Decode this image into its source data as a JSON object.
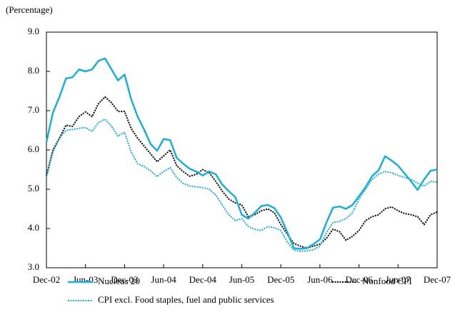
{
  "chart_data": {
    "type": "line",
    "y_axis_label": "(Percentage)",
    "categories": [
      "Dec-02",
      null,
      null,
      null,
      null,
      null,
      "Jun-03",
      null,
      null,
      null,
      null,
      null,
      "Dec-03",
      null,
      null,
      null,
      null,
      null,
      "Jun-04",
      null,
      null,
      null,
      null,
      null,
      "Dec-04",
      null,
      null,
      null,
      null,
      null,
      "Jun-05",
      null,
      null,
      null,
      null,
      null,
      "Dec-05",
      null,
      null,
      null,
      null,
      null,
      "Jun-06",
      null,
      null,
      null,
      null,
      null,
      "Dec-06",
      null,
      null,
      null,
      null,
      null,
      "Jun-07",
      null,
      null,
      null,
      null,
      null,
      "Dec-07"
    ],
    "ylim": [
      3,
      9
    ],
    "yticks": [
      {
        "value": 3,
        "label": "3.0"
      },
      {
        "value": 4,
        "label": "4.0"
      },
      {
        "value": 5,
        "label": "5.0"
      },
      {
        "value": 6,
        "label": "6.0"
      },
      {
        "value": 7,
        "label": "7.0"
      },
      {
        "value": 8,
        "label": "8.0"
      },
      {
        "value": 9,
        "label": "9.0"
      }
    ],
    "grid": false,
    "series": [
      {
        "name": "Nucleus 20",
        "color": "#1aafd6",
        "line_style": "solid",
        "values": [
          6.2,
          6.95,
          7.35,
          7.82,
          7.85,
          8.05,
          8.0,
          8.05,
          8.27,
          8.33,
          8.05,
          7.77,
          7.92,
          7.3,
          6.85,
          6.52,
          6.15,
          5.98,
          6.28,
          6.25,
          5.8,
          5.65,
          5.52,
          5.45,
          5.35,
          5.45,
          5.38,
          5.12,
          4.95,
          4.8,
          4.35,
          4.25,
          4.4,
          4.57,
          4.6,
          4.52,
          4.28,
          3.9,
          3.5,
          3.48,
          3.5,
          3.6,
          3.72,
          4.15,
          4.53,
          4.56,
          4.5,
          4.6,
          4.82,
          5.05,
          5.33,
          5.48,
          5.84,
          5.73,
          5.6,
          5.4,
          5.2,
          4.98,
          5.25,
          5.47,
          5.5
        ]
      },
      {
        "name": "Nonfood CPI",
        "color": "#000000",
        "line_style": "dotted",
        "values": [
          5.35,
          6.0,
          6.3,
          6.63,
          6.6,
          6.85,
          6.97,
          6.85,
          7.18,
          7.35,
          7.2,
          6.98,
          6.98,
          6.55,
          6.3,
          6.1,
          5.9,
          5.7,
          5.85,
          6.0,
          5.6,
          5.45,
          5.33,
          5.38,
          5.5,
          5.42,
          5.2,
          4.95,
          4.75,
          4.65,
          4.6,
          4.3,
          4.35,
          4.45,
          4.5,
          4.4,
          4.1,
          3.85,
          3.62,
          3.55,
          3.5,
          3.55,
          3.6,
          3.75,
          3.98,
          3.92,
          3.7,
          3.8,
          3.95,
          4.2,
          4.3,
          4.35,
          4.5,
          4.55,
          4.45,
          4.38,
          4.35,
          4.3,
          4.1,
          4.35,
          4.42
        ]
      },
      {
        "name": "CPI excl. Food staples, fuel and public services",
        "color": "#1aafd6",
        "line_style": "dotted",
        "values": [
          5.3,
          5.95,
          6.3,
          6.5,
          6.52,
          6.55,
          6.57,
          6.47,
          6.7,
          6.78,
          6.6,
          6.35,
          6.45,
          5.95,
          5.65,
          5.58,
          5.47,
          5.32,
          5.45,
          5.55,
          5.3,
          5.15,
          5.08,
          5.06,
          5.04,
          5.0,
          4.85,
          4.6,
          4.35,
          4.2,
          4.25,
          4.05,
          3.98,
          3.95,
          4.05,
          4.02,
          3.95,
          3.65,
          3.45,
          3.42,
          3.43,
          3.46,
          3.55,
          3.9,
          4.15,
          4.18,
          4.25,
          4.4,
          4.75,
          5.0,
          5.25,
          5.38,
          5.45,
          5.42,
          5.35,
          5.3,
          5.25,
          5.15,
          5.08,
          5.2,
          5.18
        ]
      }
    ]
  }
}
